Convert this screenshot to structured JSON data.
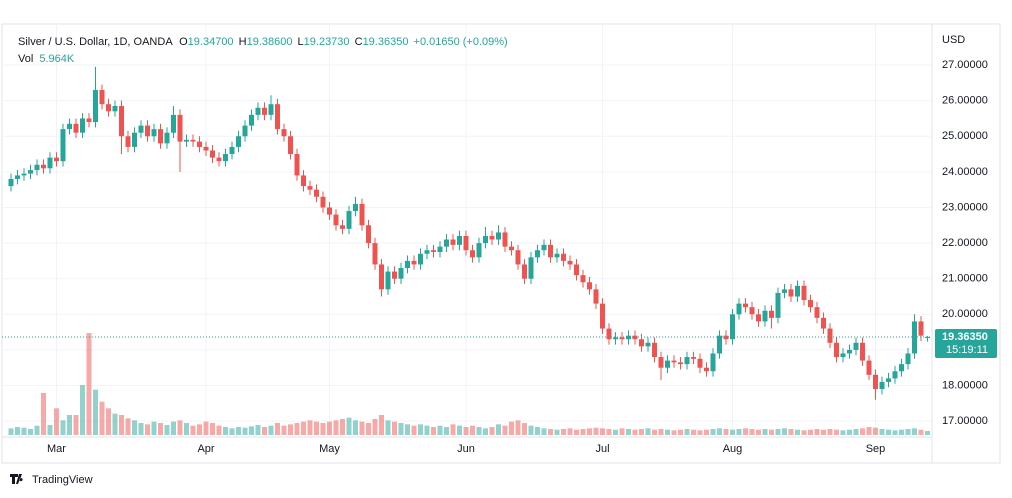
{
  "header": {
    "symbol": "Silver / U.S. Dollar, 1D, OANDA",
    "ohlc": [
      {
        "key": "O",
        "value": "19.34700"
      },
      {
        "key": "H",
        "value": "19.38600"
      },
      {
        "key": "L",
        "value": "19.23730"
      },
      {
        "key": "C",
        "value": "19.36350"
      }
    ],
    "change": "+0.01650 (+0.09%)",
    "volume_key": "Vol",
    "volume": "5.964K"
  },
  "footer": {
    "brand": "TradingView"
  },
  "chart_data": {
    "type": "candlestick",
    "currency": "USD",
    "up_color": "#26a69a",
    "down_color": "#ef5350",
    "grid": true,
    "ylim": [
      16.47,
      28.04
    ],
    "yticks": [
      {
        "value": 17,
        "label": "17.00000"
      },
      {
        "value": 18,
        "label": "18.00000"
      },
      {
        "value": 19,
        "label": "19.00000"
      },
      {
        "value": 20,
        "label": "20.00000"
      },
      {
        "value": 21,
        "label": "21.00000"
      },
      {
        "value": 22,
        "label": "22.00000"
      },
      {
        "value": 23,
        "label": "23.00000"
      },
      {
        "value": 24,
        "label": "24.00000"
      },
      {
        "value": 25,
        "label": "25.00000"
      },
      {
        "value": 26,
        "label": "26.00000"
      },
      {
        "value": 27,
        "label": "27.00000"
      }
    ],
    "last_price": {
      "value": 19.3635,
      "label": "19.36350"
    },
    "countdown": "15:19:11",
    "categories": [
      null,
      null,
      null,
      null,
      null,
      null,
      null,
      "Mar",
      null,
      null,
      null,
      null,
      null,
      null,
      null,
      null,
      null,
      null,
      null,
      null,
      null,
      null,
      null,
      null,
      null,
      null,
      null,
      null,
      null,
      null,
      "Apr",
      null,
      null,
      null,
      null,
      null,
      null,
      null,
      null,
      null,
      null,
      null,
      null,
      null,
      null,
      null,
      null,
      null,
      null,
      "May",
      null,
      null,
      null,
      null,
      null,
      null,
      null,
      null,
      null,
      null,
      null,
      null,
      null,
      null,
      null,
      null,
      null,
      null,
      null,
      null,
      "Jun",
      null,
      null,
      null,
      null,
      null,
      null,
      null,
      null,
      null,
      null,
      null,
      null,
      null,
      null,
      null,
      null,
      null,
      null,
      null,
      null,
      "Jul",
      null,
      null,
      null,
      null,
      null,
      null,
      null,
      null,
      null,
      null,
      null,
      null,
      null,
      null,
      null,
      null,
      null,
      null,
      null,
      "Aug",
      null,
      null,
      null,
      null,
      null,
      null,
      null,
      null,
      null,
      null,
      null,
      null,
      null,
      null,
      null,
      null,
      null,
      null,
      null,
      null,
      null,
      "Sep",
      null,
      null,
      null,
      null,
      null,
      null,
      null,
      null
    ],
    "open": [
      23.6,
      23.8,
      23.9,
      23.95,
      24.05,
      24.2,
      24.1,
      24.4,
      24.3,
      25.2,
      25.35,
      25.1,
      25.5,
      25.4,
      26.3,
      25.9,
      25.7,
      25.85,
      25.0,
      24.7,
      25.1,
      25.3,
      25.0,
      25.2,
      24.8,
      25.1,
      25.6,
      24.85,
      24.9,
      24.85,
      24.7,
      24.6,
      24.4,
      24.3,
      24.5,
      24.7,
      25.0,
      25.3,
      25.6,
      25.8,
      25.6,
      25.9,
      25.2,
      25.0,
      24.5,
      23.9,
      23.6,
      23.5,
      23.3,
      23.0,
      22.8,
      22.5,
      22.4,
      22.9,
      23.1,
      22.5,
      22.0,
      21.4,
      20.7,
      21.2,
      21.0,
      21.3,
      21.5,
      21.4,
      21.7,
      21.8,
      21.75,
      21.9,
      22.1,
      21.95,
      22.2,
      21.8,
      21.6,
      22.0,
      22.2,
      22.1,
      22.3,
      21.9,
      21.8,
      21.4,
      21.0,
      21.6,
      21.8,
      21.95,
      21.6,
      21.7,
      21.5,
      21.4,
      21.1,
      20.9,
      20.7,
      20.3,
      19.6,
      19.3,
      19.35,
      19.3,
      19.4,
      19.3,
      19.1,
      19.2,
      18.8,
      18.5,
      18.7,
      18.65,
      18.6,
      18.8,
      18.75,
      18.5,
      18.4,
      18.9,
      19.4,
      19.3,
      20.0,
      20.3,
      20.2,
      20.0,
      19.8,
      20.1,
      19.9,
      20.6,
      20.7,
      20.5,
      20.8,
      20.4,
      20.2,
      19.9,
      19.6,
      19.2,
      18.8,
      18.9,
      19.0,
      19.2,
      18.7,
      18.3,
      17.9,
      18.1,
      18.2,
      18.4,
      18.6,
      18.9,
      19.8,
      19.347
    ],
    "high": [
      23.95,
      24.05,
      24.1,
      24.2,
      24.35,
      24.35,
      24.55,
      24.55,
      25.35,
      25.5,
      25.5,
      25.65,
      25.65,
      26.95,
      26.45,
      26.05,
      26.0,
      26.0,
      25.15,
      25.25,
      25.45,
      25.45,
      25.35,
      25.35,
      25.25,
      25.85,
      25.75,
      25.05,
      25.05,
      25.0,
      24.85,
      24.75,
      24.55,
      24.65,
      24.85,
      25.15,
      25.45,
      25.75,
      25.95,
      25.95,
      26.15,
      26.05,
      25.35,
      25.15,
      24.65,
      24.05,
      23.75,
      23.65,
      23.45,
      23.15,
      22.95,
      22.65,
      23.05,
      23.3,
      23.25,
      22.65,
      22.15,
      21.55,
      21.35,
      21.35,
      21.45,
      21.65,
      21.65,
      21.85,
      21.95,
      21.95,
      22.05,
      22.25,
      22.25,
      22.35,
      22.35,
      21.95,
      22.15,
      22.45,
      22.35,
      22.5,
      22.45,
      22.05,
      21.95,
      21.55,
      21.75,
      21.95,
      22.1,
      22.1,
      21.85,
      21.85,
      21.65,
      21.55,
      21.25,
      21.05,
      20.85,
      20.45,
      19.75,
      19.5,
      19.5,
      19.55,
      19.55,
      19.45,
      19.35,
      19.35,
      18.95,
      18.85,
      18.85,
      18.8,
      18.95,
      18.95,
      18.9,
      18.65,
      19.05,
      19.55,
      19.55,
      20.15,
      20.45,
      20.45,
      20.35,
      20.15,
      20.25,
      20.25,
      20.75,
      20.85,
      20.85,
      20.95,
      20.95,
      20.55,
      20.35,
      20.05,
      19.75,
      19.35,
      19.05,
      19.15,
      19.35,
      19.35,
      18.85,
      18.45,
      18.25,
      18.35,
      18.55,
      18.75,
      19.05,
      20.0,
      19.95,
      19.386
    ],
    "low": [
      23.45,
      23.65,
      23.75,
      23.8,
      23.9,
      23.95,
      23.95,
      24.15,
      24.15,
      25.05,
      24.95,
      24.95,
      25.25,
      25.25,
      25.75,
      25.55,
      25.55,
      24.5,
      24.55,
      24.55,
      24.95,
      24.85,
      24.85,
      24.65,
      24.65,
      24.95,
      24.0,
      24.7,
      24.7,
      24.55,
      24.45,
      24.25,
      24.15,
      24.15,
      24.35,
      24.55,
      24.85,
      25.15,
      25.45,
      25.45,
      25.45,
      25.05,
      24.85,
      24.35,
      23.75,
      23.45,
      23.35,
      23.15,
      22.85,
      22.65,
      22.35,
      22.25,
      22.25,
      22.75,
      22.35,
      21.85,
      21.25,
      20.5,
      20.55,
      20.85,
      20.85,
      21.15,
      21.25,
      21.25,
      21.55,
      21.6,
      21.6,
      21.75,
      21.8,
      21.8,
      21.65,
      21.45,
      21.45,
      21.85,
      21.95,
      21.95,
      21.75,
      21.65,
      21.25,
      20.85,
      20.85,
      21.45,
      21.65,
      21.45,
      21.45,
      21.35,
      21.25,
      20.95,
      20.75,
      20.55,
      20.15,
      19.45,
      19.15,
      19.15,
      19.15,
      19.15,
      19.15,
      18.95,
      18.95,
      18.65,
      18.15,
      18.35,
      18.5,
      18.45,
      18.45,
      18.6,
      18.35,
      18.25,
      18.25,
      18.75,
      19.15,
      19.15,
      19.85,
      20.05,
      19.85,
      19.65,
      19.65,
      19.6,
      19.75,
      20.45,
      20.35,
      20.35,
      20.25,
      20.05,
      19.75,
      19.45,
      19.05,
      18.65,
      18.65,
      18.75,
      18.85,
      18.55,
      18.15,
      17.6,
      17.75,
      17.95,
      18.05,
      18.25,
      18.45,
      18.75,
      19.25,
      19.2373
    ],
    "close": [
      23.8,
      23.9,
      23.95,
      24.05,
      24.2,
      24.1,
      24.4,
      24.3,
      25.2,
      25.35,
      25.1,
      25.5,
      25.4,
      26.3,
      25.9,
      25.7,
      25.85,
      25.0,
      24.7,
      25.1,
      25.3,
      25.0,
      25.2,
      24.8,
      25.1,
      25.6,
      24.85,
      24.9,
      24.85,
      24.7,
      24.6,
      24.4,
      24.3,
      24.5,
      24.7,
      25.0,
      25.3,
      25.6,
      25.8,
      25.6,
      25.9,
      25.2,
      25.0,
      24.5,
      23.9,
      23.6,
      23.5,
      23.3,
      23.0,
      22.8,
      22.5,
      22.4,
      22.9,
      23.1,
      22.5,
      22.0,
      21.4,
      20.7,
      21.2,
      21.0,
      21.3,
      21.5,
      21.4,
      21.7,
      21.8,
      21.75,
      21.9,
      22.1,
      21.95,
      22.2,
      21.8,
      21.6,
      22.0,
      22.2,
      22.1,
      22.3,
      21.9,
      21.8,
      21.4,
      21.0,
      21.6,
      21.8,
      21.95,
      21.6,
      21.7,
      21.5,
      21.4,
      21.1,
      20.9,
      20.7,
      20.3,
      19.6,
      19.3,
      19.35,
      19.3,
      19.4,
      19.3,
      19.1,
      19.2,
      18.8,
      18.5,
      18.7,
      18.65,
      18.6,
      18.8,
      18.75,
      18.5,
      18.4,
      18.9,
      19.4,
      19.3,
      20.0,
      20.3,
      20.2,
      20.0,
      19.8,
      20.1,
      19.9,
      20.6,
      20.7,
      20.5,
      20.8,
      20.4,
      20.2,
      19.9,
      19.6,
      19.2,
      18.8,
      18.9,
      19.0,
      19.2,
      18.7,
      18.3,
      17.9,
      18.1,
      18.2,
      18.4,
      18.6,
      18.9,
      19.8,
      19.4,
      19.3635
    ],
    "volume": [
      10,
      12,
      11,
      9,
      14,
      63,
      15,
      40,
      22,
      30,
      30,
      75,
      153,
      68,
      50,
      40,
      32,
      30,
      25,
      22,
      18,
      16,
      20,
      18,
      15,
      20,
      22,
      18,
      14,
      16,
      20,
      18,
      14,
      12,
      10,
      12,
      11,
      13,
      15,
      12,
      14,
      18,
      14,
      16,
      18,
      20,
      22,
      20,
      18,
      20,
      22,
      24,
      26,
      22,
      20,
      18,
      24,
      30,
      22,
      20,
      18,
      16,
      14,
      16,
      14,
      12,
      14,
      12,
      16,
      14,
      12,
      14,
      12,
      10,
      12,
      16,
      14,
      20,
      22,
      18,
      14,
      12,
      10,
      9,
      8,
      9,
      10,
      8,
      9,
      10,
      11,
      10,
      9,
      8,
      10,
      9,
      8,
      9,
      10,
      8,
      9,
      8,
      7,
      8,
      9,
      8,
      7,
      8,
      9,
      10,
      9,
      8,
      9,
      10,
      9,
      8,
      9,
      8,
      9,
      10,
      9,
      8,
      7,
      8,
      9,
      8,
      9,
      8,
      7,
      8,
      9,
      10,
      12,
      11,
      9,
      8,
      7,
      8,
      9,
      10,
      8,
      5.964
    ]
  }
}
